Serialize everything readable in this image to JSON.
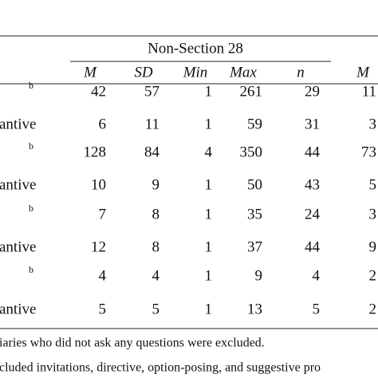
{
  "table": {
    "group_header": "Non-Section 28",
    "columns": [
      "M",
      "SD",
      "Min",
      "Max",
      "n",
      "M"
    ],
    "rows": [
      {
        "label": "",
        "sup": "b",
        "values": [
          42,
          57,
          1,
          261,
          29,
          11
        ]
      },
      {
        "label": "antive",
        "sup": "",
        "values": [
          6,
          11,
          1,
          59,
          31,
          3
        ]
      },
      {
        "label": "",
        "sup": "b",
        "values": [
          128,
          84,
          4,
          350,
          44,
          73
        ]
      },
      {
        "label": "antive",
        "sup": "",
        "values": [
          10,
          9,
          1,
          50,
          43,
          5
        ]
      },
      {
        "label": "",
        "sup": "b",
        "values": [
          7,
          8,
          1,
          35,
          24,
          3
        ]
      },
      {
        "label": "antive",
        "sup": "",
        "values": [
          12,
          8,
          1,
          37,
          44,
          9
        ]
      },
      {
        "label": "",
        "sup": "b",
        "values": [
          4,
          4,
          1,
          9,
          4,
          2
        ]
      },
      {
        "label": "antive",
        "sup": "",
        "values": [
          5,
          5,
          1,
          13,
          5,
          2
        ]
      }
    ],
    "footnotes": [
      "iaries who did not ask any questions were excluded.",
      "cluded invitations, directive, option-posing, and suggestive pro"
    ]
  }
}
